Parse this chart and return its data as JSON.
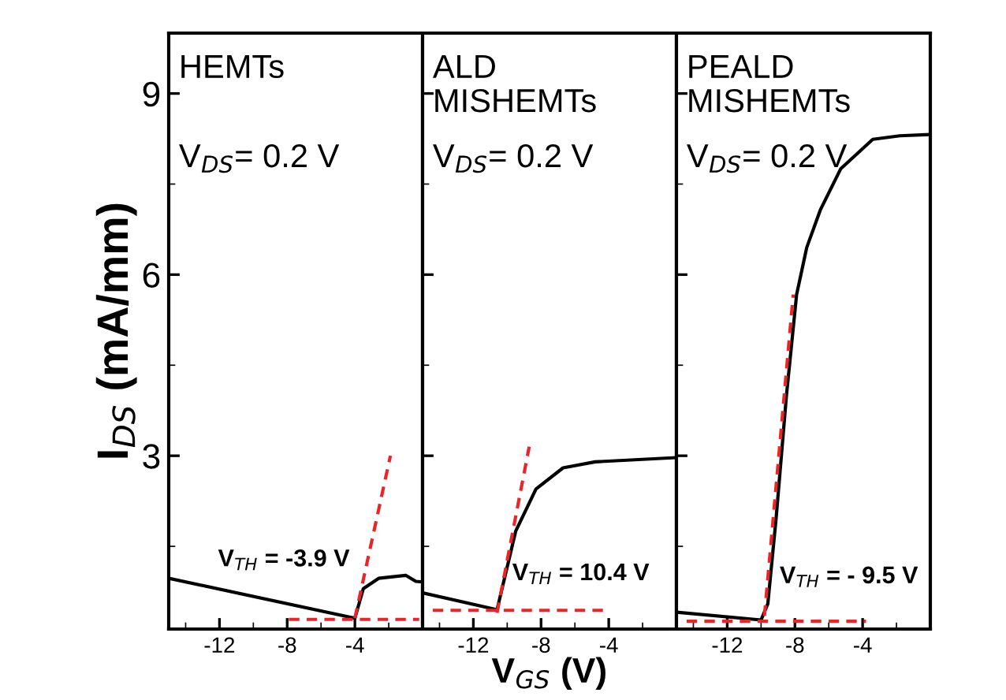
{
  "chart_data": [
    {
      "type": "line",
      "ylabel": "I$_{DS}$ (mA/mm)",
      "xlim": [
        -15,
        0
      ],
      "xticks": [
        -12,
        -8,
        -4
      ],
      "ylim": [
        0.13,
        10
      ],
      "yticks": [
        3,
        6,
        9
      ],
      "grid": false,
      "legend": false,
      "annotations": [
        "HEMTs",
        "V$_{DS}$= 0.2 V",
        "V$_{TH}$ = -3.9 V"
      ],
      "series": [
        {
          "color": "#000000",
          "line_style": "solid",
          "x": [
            -15,
            -4.0,
            -3.5,
            -2.6,
            -1.0,
            -0.4,
            0
          ],
          "values": [
            0.97,
            0.31,
            0.8,
            0.97,
            1.02,
            0.92,
            0.91
          ]
        },
        {
          "color": "#e8262a",
          "line_style": "dashed",
          "x": [
            -4.0,
            -1.9
          ],
          "values": [
            0.31,
            3.0
          ]
        },
        {
          "color": "#e8262a",
          "line_style": "dashed",
          "x": [
            -7.9,
            -0.2
          ],
          "values": [
            0.29,
            0.29
          ]
        }
      ]
    },
    {
      "type": "line",
      "xlabel": "V$_{GS}$ (V)",
      "xlim": [
        -15,
        0
      ],
      "xticks": [
        -12,
        -8,
        -4
      ],
      "ylim": [
        0.13,
        10
      ],
      "yticks": [
        3,
        6,
        9
      ],
      "tick_labels": "x",
      "grid": false,
      "legend": false,
      "annotations": [
        "ALD\nMISHEMTs",
        "V$_{DS}$= 0.2 V",
        "V$_{TH}$ = 10.4 V"
      ],
      "series": [
        {
          "color": "#000000",
          "line_style": "solid",
          "x": [
            -15,
            -10.6,
            -9.5,
            -8.3,
            -6.7,
            -4.8,
            0
          ],
          "values": [
            0.73,
            0.45,
            1.75,
            2.45,
            2.8,
            2.9,
            2.97
          ]
        },
        {
          "color": "#e8262a",
          "line_style": "dashed",
          "x": [
            -10.6,
            -8.7
          ],
          "values": [
            0.4,
            3.15
          ]
        },
        {
          "color": "#e8262a",
          "line_style": "dashed",
          "x": [
            -14.4,
            -4.3
          ],
          "values": [
            0.44,
            0.44
          ]
        }
      ]
    },
    {
      "type": "line",
      "xlim": [
        -15,
        0
      ],
      "xticks": [
        -12,
        -8,
        -4
      ],
      "ylim": [
        0.13,
        10
      ],
      "yticks": [
        3,
        6,
        9
      ],
      "tick_labels": "x",
      "grid": false,
      "legend": false,
      "annotations": [
        "PEALD\nMISHEMTs",
        "V$_{DS}$= 0.2 V",
        "V$_{TH}$ = - 9.5 V"
      ],
      "series": [
        {
          "color": "#000000",
          "line_style": "solid",
          "x": [
            -15,
            -10,
            -9.6,
            -9.1,
            -8.5,
            -7.9,
            -7.3,
            -6.5,
            -5.3,
            -3.4,
            -1.8,
            0
          ],
          "values": [
            0.41,
            0.28,
            0.55,
            2.0,
            4.0,
            5.67,
            6.45,
            7.07,
            7.75,
            8.24,
            8.3,
            8.32
          ]
        },
        {
          "color": "#e8262a",
          "line_style": "dashed",
          "x": [
            -9.8,
            -8.1
          ],
          "values": [
            0.35,
            5.67
          ]
        },
        {
          "color": "#e8262a",
          "line_style": "dashed",
          "x": [
            -14.4,
            -3.8
          ],
          "values": [
            0.26,
            0.26
          ]
        }
      ]
    }
  ]
}
